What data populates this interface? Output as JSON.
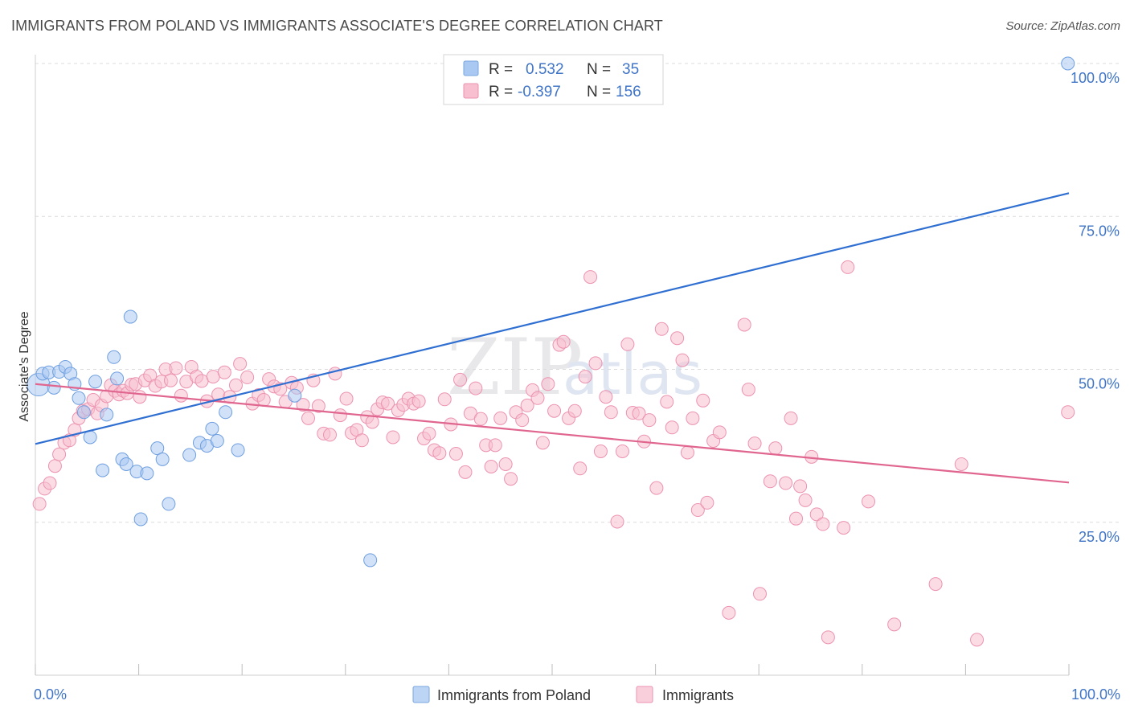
{
  "header": {
    "title": "IMMIGRANTS FROM POLAND VS IMMIGRANTS ASSOCIATE'S DEGREE CORRELATION CHART",
    "source": "Source: ZipAtlas.com"
  },
  "watermark": {
    "zip": "ZIP",
    "atlas": "atlas"
  },
  "legend": {
    "rows": [
      {
        "r_label": "R =",
        "r_value": "0.532",
        "n_label": "N =",
        "n_value": "35",
        "color": "#a9c8f2",
        "stroke": "#7aa7e0"
      },
      {
        "r_label": "R =",
        "r_value": "-0.397",
        "n_label": "N =",
        "n_value": "156",
        "color": "#f7bfd0",
        "stroke": "#ec93b0"
      }
    ]
  },
  "bottom_legend": [
    {
      "label": "Immigrants from Poland",
      "color": "#bcd5f5",
      "stroke": "#7aa7e0"
    },
    {
      "label": "Immigrants",
      "color": "#f9cfdc",
      "stroke": "#ec93b0"
    }
  ],
  "chart_data": {
    "type": "scatter",
    "title": "IMMIGRANTS FROM POLAND VS IMMIGRANTS ASSOCIATE'S DEGREE CORRELATION CHART",
    "ylabel": "Associate's Degree",
    "xlabel": "",
    "xlim": [
      0,
      100
    ],
    "ylim": [
      0,
      100
    ],
    "y_ticks": [
      {
        "value": 25,
        "label": "25.0%"
      },
      {
        "value": 50,
        "label": "50.0%"
      },
      {
        "value": 75,
        "label": "75.0%"
      },
      {
        "value": 100,
        "label": "100.0%"
      }
    ],
    "x_tick_labels": [
      {
        "value": 0,
        "label": "0.0%"
      },
      {
        "value": 100,
        "label": "100.0%"
      }
    ],
    "x_minor_ticks": [
      0,
      10,
      20,
      30,
      40,
      50,
      60,
      70,
      80,
      90,
      100
    ],
    "grid": true,
    "legend_position": "top-center",
    "series": [
      {
        "name": "Immigrants from Poland",
        "color": "#a9c8f2",
        "stroke": "#6f9fe0",
        "line_color": "#2f6fd1",
        "trend": {
          "x0": 0,
          "y0": 37.8,
          "x1": 100,
          "y1": 78.8
        },
        "points": [
          [
            0.3,
            47.5,
            14
          ],
          [
            0.7,
            49.3,
            8
          ],
          [
            1.3,
            49.5,
            8
          ],
          [
            1.8,
            47.0,
            8
          ],
          [
            2.3,
            49.6,
            8
          ],
          [
            2.9,
            50.4,
            8
          ],
          [
            3.4,
            49.3,
            8
          ],
          [
            3.8,
            47.6,
            8
          ],
          [
            4.2,
            45.3,
            8
          ],
          [
            4.7,
            43.0,
            8
          ],
          [
            5.3,
            38.9,
            8
          ],
          [
            5.8,
            48.0,
            8
          ],
          [
            6.5,
            33.5,
            8
          ],
          [
            6.9,
            42.6,
            8
          ],
          [
            7.6,
            52.0,
            8
          ],
          [
            7.9,
            48.5,
            8
          ],
          [
            8.4,
            35.3,
            8
          ],
          [
            8.8,
            34.5,
            8
          ],
          [
            9.2,
            58.6,
            8
          ],
          [
            9.8,
            33.3,
            8
          ],
          [
            10.2,
            25.5,
            8
          ],
          [
            10.8,
            33.0,
            8
          ],
          [
            11.8,
            37.1,
            8
          ],
          [
            12.3,
            35.3,
            8
          ],
          [
            12.9,
            28.0,
            8
          ],
          [
            14.9,
            36.0,
            8
          ],
          [
            15.9,
            38.0,
            8
          ],
          [
            16.6,
            37.5,
            8
          ],
          [
            17.1,
            40.3,
            8
          ],
          [
            17.6,
            38.3,
            8
          ],
          [
            18.4,
            43.0,
            8
          ],
          [
            19.6,
            36.8,
            8
          ],
          [
            25.1,
            45.7,
            8
          ],
          [
            32.4,
            18.8,
            8
          ],
          [
            99.9,
            100.0,
            8
          ]
        ]
      },
      {
        "name": "Immigrants",
        "color": "#f7bfd0",
        "stroke": "#ec93b0",
        "line_color": "#e0668f",
        "trend": {
          "x0": 0,
          "y0": 47.6,
          "x1": 100,
          "y1": 31.5
        },
        "points": [
          [
            0.4,
            28.0
          ],
          [
            0.9,
            30.5
          ],
          [
            1.4,
            31.4
          ],
          [
            1.9,
            34.2
          ],
          [
            2.3,
            36.1
          ],
          [
            2.8,
            38.0
          ],
          [
            3.3,
            38.4
          ],
          [
            3.8,
            40.1
          ],
          [
            4.2,
            42.0
          ],
          [
            4.6,
            43.2
          ],
          [
            5.1,
            43.5
          ],
          [
            5.6,
            45.0
          ],
          [
            6.0,
            42.8
          ],
          [
            6.4,
            44.1
          ],
          [
            6.9,
            45.6
          ],
          [
            7.3,
            47.4
          ],
          [
            7.7,
            46.5
          ],
          [
            8.1,
            45.9
          ],
          [
            8.5,
            46.5
          ],
          [
            8.9,
            46.1
          ],
          [
            9.3,
            47.5
          ],
          [
            9.7,
            47.6
          ],
          [
            10.1,
            45.5
          ],
          [
            10.6,
            48.2
          ],
          [
            11.1,
            49.0
          ],
          [
            11.6,
            47.3
          ],
          [
            12.2,
            48.0
          ],
          [
            12.6,
            50.0
          ],
          [
            13.1,
            48.2
          ],
          [
            13.6,
            50.2
          ],
          [
            14.1,
            45.7
          ],
          [
            14.6,
            48.0
          ],
          [
            15.1,
            50.4
          ],
          [
            15.6,
            48.8
          ],
          [
            16.1,
            48.1
          ],
          [
            16.6,
            44.8
          ],
          [
            17.2,
            48.8
          ],
          [
            17.7,
            45.9
          ],
          [
            18.3,
            49.5
          ],
          [
            18.8,
            45.5
          ],
          [
            19.4,
            47.4
          ],
          [
            19.8,
            50.9
          ],
          [
            20.5,
            48.7
          ],
          [
            21.0,
            44.4
          ],
          [
            21.6,
            45.8
          ],
          [
            22.1,
            45.0
          ],
          [
            22.6,
            48.4
          ],
          [
            23.1,
            47.2
          ],
          [
            23.7,
            46.8
          ],
          [
            24.2,
            44.7
          ],
          [
            24.8,
            47.8
          ],
          [
            25.3,
            47.0
          ],
          [
            25.9,
            44.2
          ],
          [
            26.4,
            42.0
          ],
          [
            26.9,
            48.2
          ],
          [
            27.4,
            44.0
          ],
          [
            27.9,
            39.5
          ],
          [
            28.5,
            39.3
          ],
          [
            29.0,
            49.3
          ],
          [
            29.5,
            42.5
          ],
          [
            30.1,
            45.2
          ],
          [
            30.6,
            39.6
          ],
          [
            31.1,
            40.1
          ],
          [
            31.6,
            38.4
          ],
          [
            32.1,
            42.2
          ],
          [
            32.6,
            41.4
          ],
          [
            33.1,
            43.5
          ],
          [
            33.6,
            44.6
          ],
          [
            34.1,
            44.4
          ],
          [
            34.6,
            38.9
          ],
          [
            35.1,
            43.3
          ],
          [
            35.6,
            44.2
          ],
          [
            36.1,
            45.2
          ],
          [
            36.6,
            44.4
          ],
          [
            37.1,
            44.8
          ],
          [
            37.6,
            38.7
          ],
          [
            38.1,
            39.5
          ],
          [
            38.6,
            36.8
          ],
          [
            39.1,
            36.3
          ],
          [
            39.6,
            45.1
          ],
          [
            40.2,
            41.0
          ],
          [
            40.7,
            36.2
          ],
          [
            41.1,
            48.3
          ],
          [
            41.6,
            33.2
          ],
          [
            42.1,
            42.8
          ],
          [
            42.6,
            46.9
          ],
          [
            43.1,
            41.9
          ],
          [
            43.6,
            37.6
          ],
          [
            44.1,
            34.1
          ],
          [
            44.5,
            37.6
          ],
          [
            45.0,
            42.0
          ],
          [
            45.5,
            34.5
          ],
          [
            46.0,
            32.1
          ],
          [
            46.5,
            43.0
          ],
          [
            47.1,
            41.7
          ],
          [
            47.6,
            44.1
          ],
          [
            48.1,
            46.6
          ],
          [
            48.6,
            45.3
          ],
          [
            49.1,
            38.0
          ],
          [
            49.6,
            47.6
          ],
          [
            50.2,
            43.2
          ],
          [
            50.7,
            54.0
          ],
          [
            51.1,
            54.5
          ],
          [
            51.6,
            42.0
          ],
          [
            52.2,
            43.2
          ],
          [
            52.7,
            33.8
          ],
          [
            53.2,
            48.8
          ],
          [
            53.7,
            65.1
          ],
          [
            54.2,
            51.0
          ],
          [
            54.7,
            36.6
          ],
          [
            55.2,
            45.5
          ],
          [
            55.7,
            43.0
          ],
          [
            56.3,
            25.1
          ],
          [
            56.8,
            36.6
          ],
          [
            57.3,
            54.1
          ],
          [
            57.8,
            42.9
          ],
          [
            58.4,
            42.8
          ],
          [
            58.9,
            38.2
          ],
          [
            59.4,
            41.7
          ],
          [
            60.1,
            30.6
          ],
          [
            60.6,
            56.6
          ],
          [
            61.1,
            44.7
          ],
          [
            61.6,
            40.5
          ],
          [
            62.1,
            55.1
          ],
          [
            62.6,
            51.5
          ],
          [
            63.1,
            36.4
          ],
          [
            63.6,
            42.0
          ],
          [
            64.1,
            27.0
          ],
          [
            64.6,
            44.9
          ],
          [
            65.0,
            28.2
          ],
          [
            65.6,
            38.3
          ],
          [
            66.2,
            39.7
          ],
          [
            67.1,
            10.2
          ],
          [
            68.6,
            57.3
          ],
          [
            69.0,
            46.7
          ],
          [
            69.6,
            37.9
          ],
          [
            70.1,
            13.3
          ],
          [
            71.1,
            31.7
          ],
          [
            71.6,
            37.1
          ],
          [
            72.6,
            31.4
          ],
          [
            73.1,
            42.0
          ],
          [
            73.6,
            25.6
          ],
          [
            74.0,
            30.9
          ],
          [
            74.5,
            28.6
          ],
          [
            75.1,
            35.7
          ],
          [
            75.6,
            26.3
          ],
          [
            76.2,
            24.7
          ],
          [
            76.7,
            6.2
          ],
          [
            78.2,
            24.1
          ],
          [
            78.6,
            66.7
          ],
          [
            80.6,
            28.4
          ],
          [
            83.1,
            8.3
          ],
          [
            87.1,
            14.9
          ],
          [
            89.6,
            34.5
          ],
          [
            91.1,
            5.8
          ],
          [
            99.9,
            43.0
          ]
        ]
      }
    ]
  }
}
